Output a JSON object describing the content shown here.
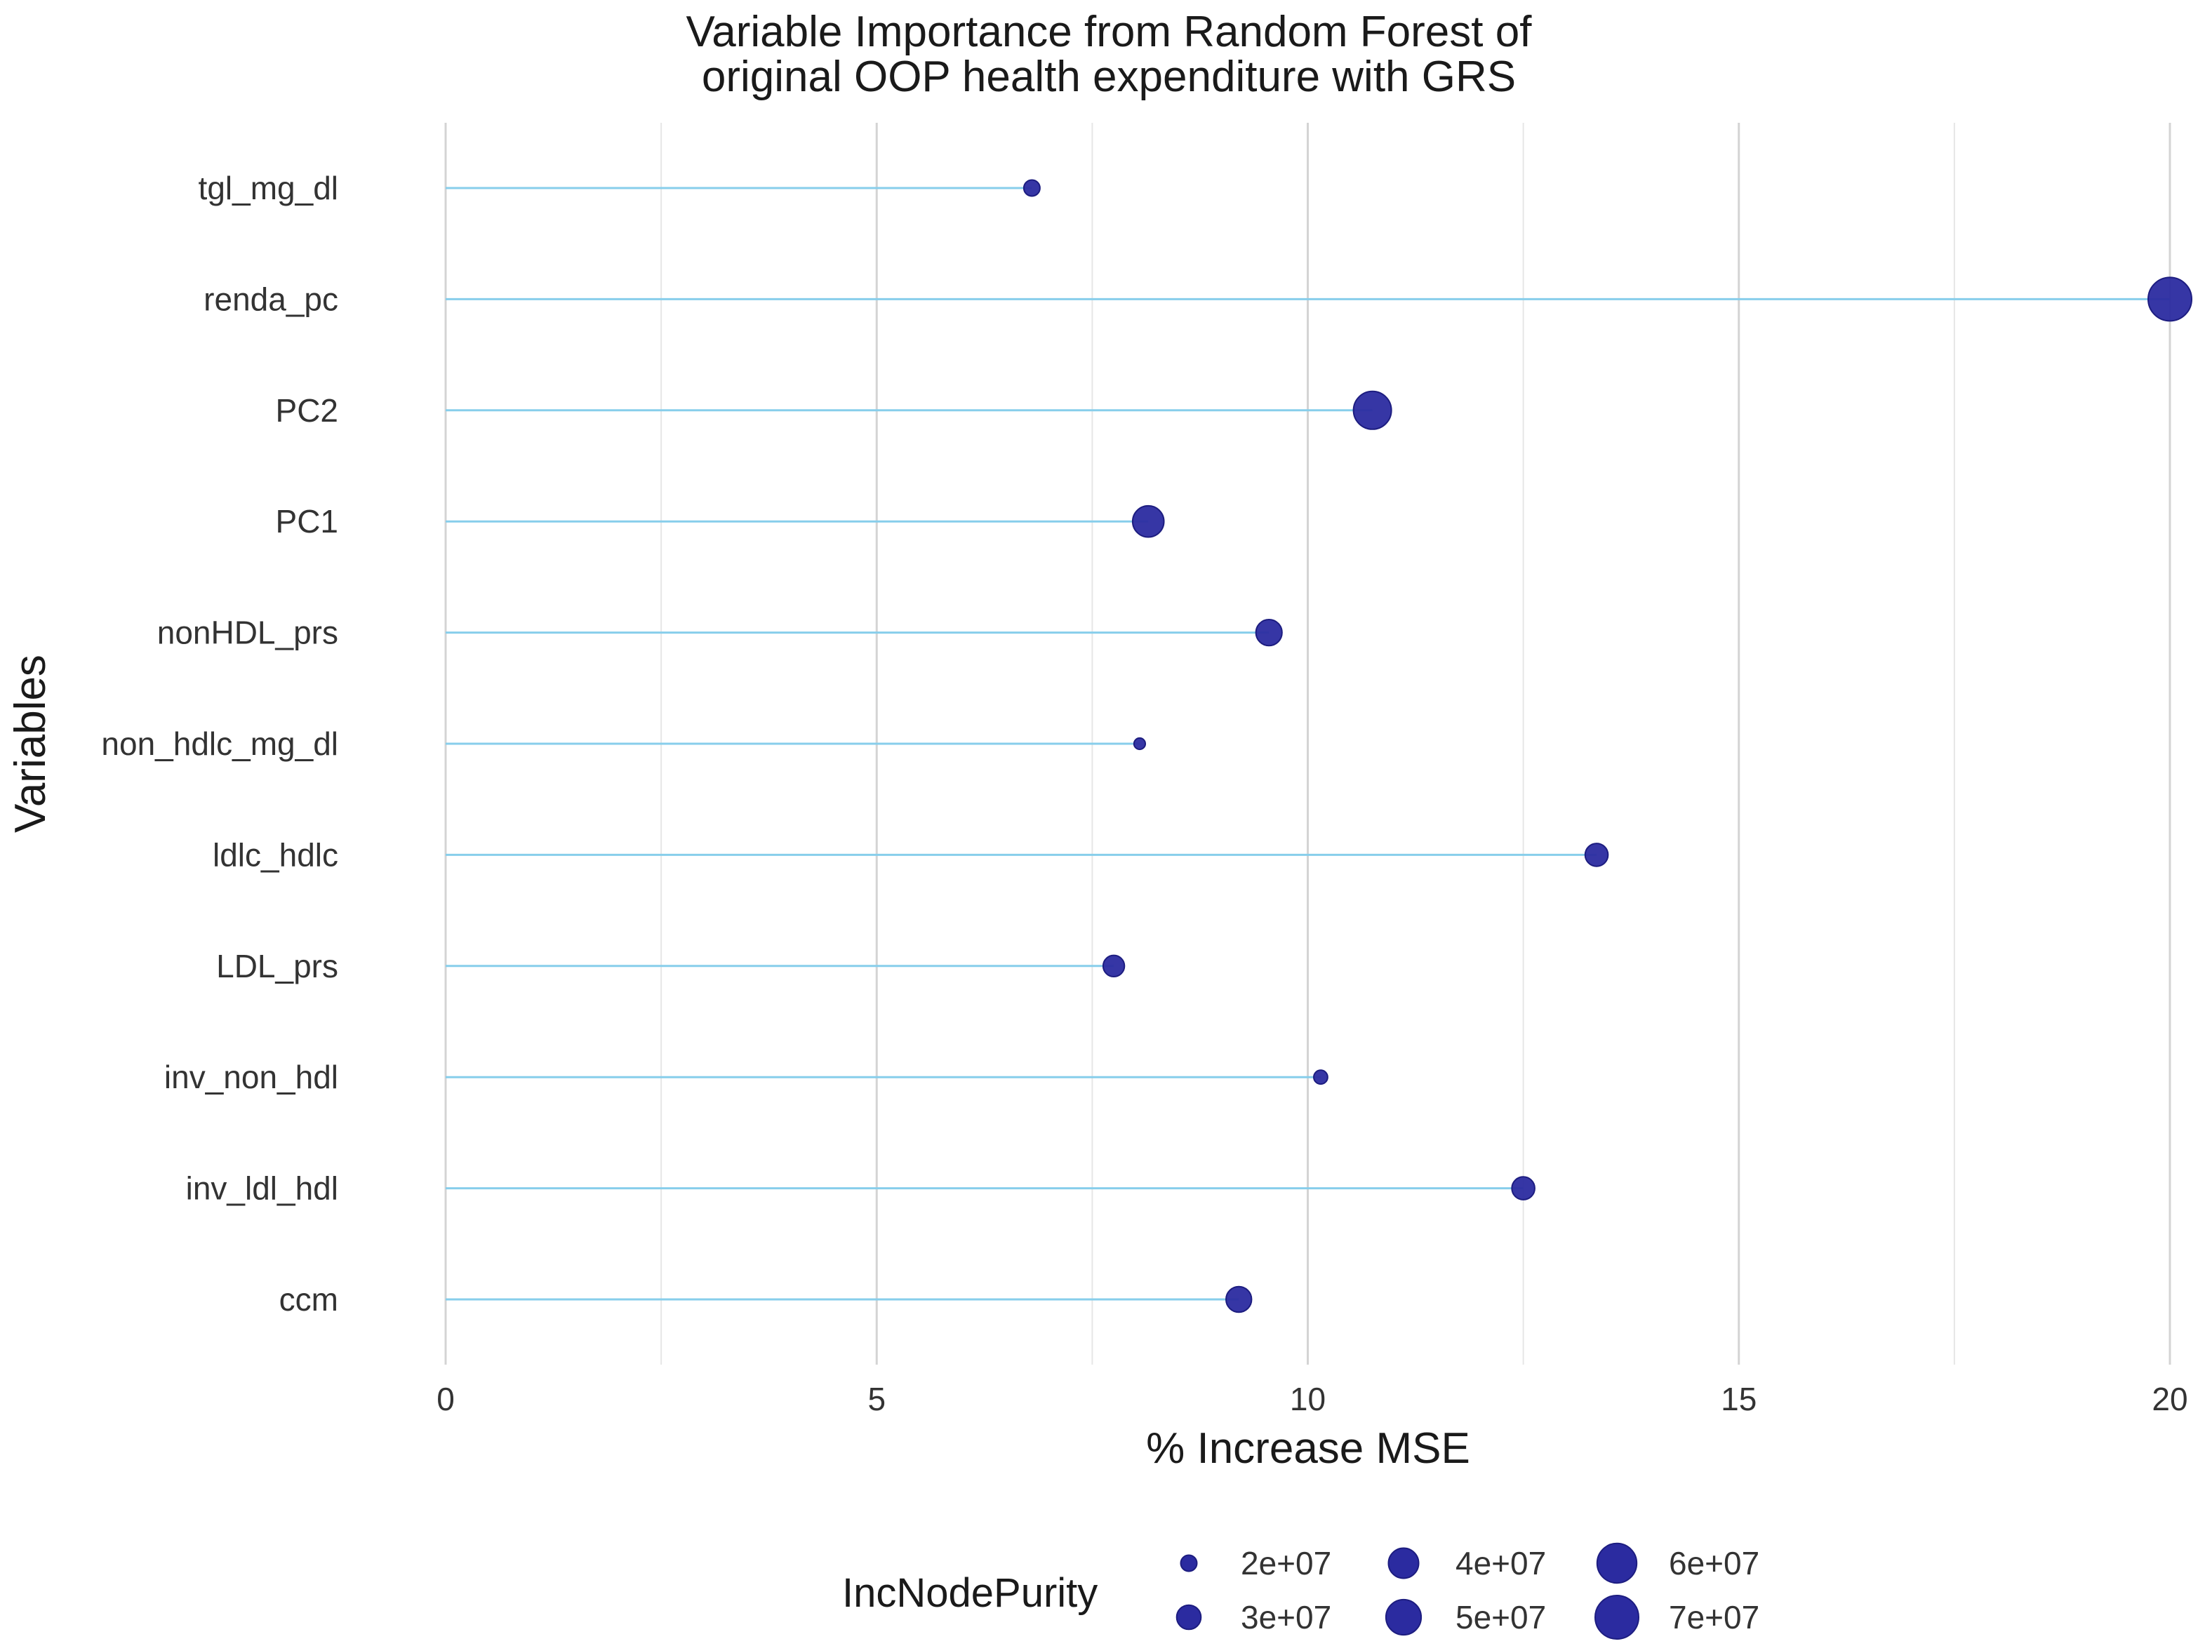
{
  "chart_data": {
    "type": "lollipop",
    "title": "Variable Importance from Random Forest of original OOP health expenditure with GRS",
    "title_lines": [
      "Variable Importance from Random Forest of",
      "original OOP health expenditure with GRS"
    ],
    "xlabel": "% Increase MSE",
    "ylabel": "Variables",
    "xlim": [
      0,
      20
    ],
    "x_ticks": [
      0,
      5,
      10,
      15,
      20
    ],
    "x_minor_grid": [
      2.5,
      7.5,
      12.5,
      17.5
    ],
    "grid": true,
    "line_color": "#87CEEB",
    "point_color": "#2B2BA0",
    "categories": [
      "tgl_mg_dl",
      "renda_pc",
      "PC2",
      "PC1",
      "nonHDL_prs",
      "non_hdlc_mg_dl",
      "ldlc_hdlc",
      "LDL_prs",
      "inv_non_hdl",
      "inv_ldl_hdl",
      "ccm"
    ],
    "values": [
      6.8,
      20.0,
      10.75,
      8.15,
      9.55,
      8.05,
      13.35,
      7.75,
      10.15,
      12.5,
      9.2
    ],
    "size_values": [
      20000000.0,
      70000000.0,
      56000000.0,
      42000000.0,
      33000000.0,
      16000000.0,
      28000000.0,
      26000000.0,
      18000000.0,
      28000000.0,
      32000000.0
    ],
    "size_range": [
      15000000.0,
      70000000.0
    ],
    "legend": {
      "title": "IncNodePurity",
      "placement": "bottom",
      "entries": [
        {
          "label": "2e+07",
          "value": 20000000.0
        },
        {
          "label": "3e+07",
          "value": 30000000.0
        },
        {
          "label": "4e+07",
          "value": 40000000.0
        },
        {
          "label": "5e+07",
          "value": 50000000.0
        },
        {
          "label": "6e+07",
          "value": 60000000.0
        },
        {
          "label": "7e+07",
          "value": 70000000.0
        }
      ]
    }
  }
}
